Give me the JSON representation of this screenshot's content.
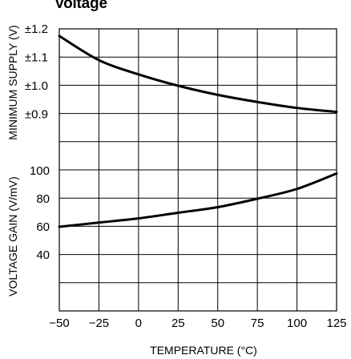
{
  "title": "Voltage",
  "chart_data": [
    {
      "type": "line",
      "ylabel": "MINIMUM SUPPLY (V)",
      "xlabel": "TEMPERATURE (°C)",
      "xlim": [
        -50,
        125
      ],
      "ylim": [
        0.8,
        1.2
      ],
      "yticks": [
        "±0.9",
        "±1.0",
        "±1.1",
        "±1.2"
      ],
      "grid": true,
      "series": [
        {
          "x": [
            -50,
            -25,
            0,
            25,
            50,
            75,
            100,
            125
          ],
          "y": [
            1.175,
            1.09,
            1.04,
            1.0,
            0.968,
            0.943,
            0.922,
            0.908
          ]
        }
      ]
    },
    {
      "type": "line",
      "ylabel": "VOLTAGE GAIN (V/mV)",
      "xlabel": "TEMPERATURE (°C)",
      "xlim": [
        -50,
        125
      ],
      "ylim": [
        0,
        120
      ],
      "yticks": [
        "40",
        "60",
        "80",
        "100"
      ],
      "xticks": [
        "−50",
        "−25",
        "0",
        "25",
        "50",
        "75",
        "100",
        "125"
      ],
      "grid": true,
      "series": [
        {
          "x": [
            -50,
            -25,
            0,
            25,
            50,
            75,
            100,
            125
          ],
          "y": [
            60,
            63,
            66,
            70,
            74,
            80,
            87,
            98
          ]
        }
      ]
    }
  ]
}
